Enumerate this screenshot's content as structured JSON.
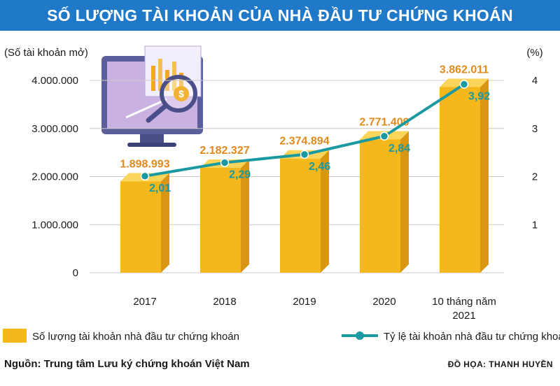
{
  "title": "SỐ LƯỢNG TÀI KHOẢN CỦA NHÀ ĐẦU TƯ CHỨNG KHOÁN",
  "source": "Nguồn: Trung tâm Lưu ký chứng khoán Việt Nam",
  "credit": "ĐỒ HỌA: THANH HUYỀN",
  "colors": {
    "title_bg": "#1f78c8",
    "bar_front": "#f4b81c",
    "bar_side": "#d99612",
    "bar_top": "#fbd55a",
    "line": "#1a9aa0",
    "value_label": "#e08a1e"
  },
  "chart_data": {
    "type": "bar",
    "title": "SỐ LƯỢNG TÀI KHOẢN CỦA NHÀ ĐẦU TƯ CHỨNG KHOÁN",
    "ylabel": "(Số tài khoản mở)",
    "y2label": "(%)",
    "ylim": [
      0,
      4000000
    ],
    "y2lim": [
      0,
      4
    ],
    "yticks": [
      "0",
      "1.000.000",
      "2.000.000",
      "3.000.000",
      "4.000.000"
    ],
    "y2ticks": [
      "1",
      "2",
      "3",
      "4"
    ],
    "categories": [
      "2017",
      "2018",
      "2019",
      "2020",
      "10 tháng năm|2021"
    ],
    "series": [
      {
        "name": "Số lượng tài khoản nhà đầu tư chứng khoán",
        "kind": "bar",
        "axis": "left",
        "values": [
          1898993,
          2182327,
          2374894,
          2771409,
          3862011
        ],
        "labels": [
          "1.898.993",
          "2.182.327",
          "2.374.894",
          "2.771.409",
          "3.862.011"
        ]
      },
      {
        "name": "Tỷ lệ tài khoản nhà đầu tư chứng khoán/dân số",
        "kind": "line",
        "axis": "right",
        "values": [
          2.01,
          2.29,
          2.46,
          2.84,
          3.92
        ],
        "labels": [
          "2,01",
          "2,29",
          "2,46",
          "2,84",
          "3,92"
        ]
      }
    ],
    "legend_position": "bottom"
  }
}
